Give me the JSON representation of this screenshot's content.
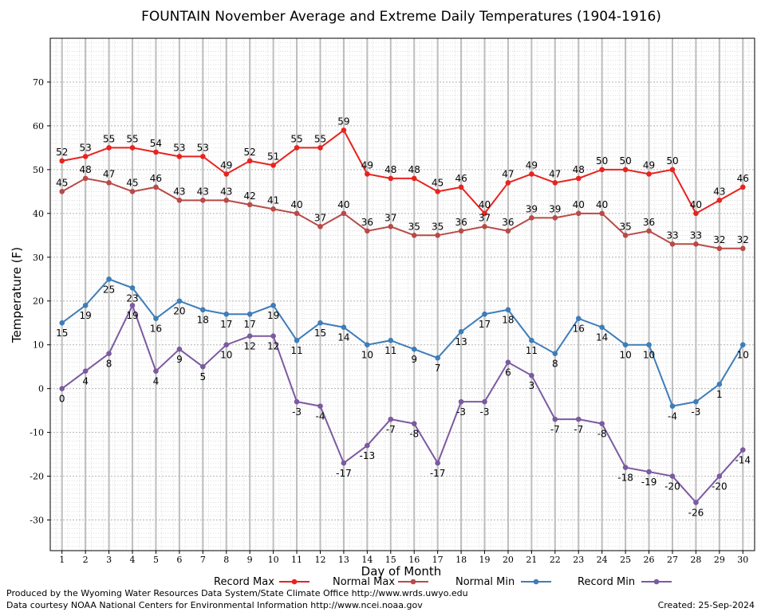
{
  "chart_data": {
    "type": "line",
    "title": "FOUNTAIN November Average and Extreme Daily Temperatures (1904-1916)",
    "xlabel": "Day of Month",
    "ylabel": "Temperature (F)",
    "ylim": [
      -37,
      80
    ],
    "xlim": [
      0.5,
      30.5
    ],
    "yticks": [
      -30,
      -20,
      -10,
      0,
      10,
      20,
      30,
      40,
      50,
      60,
      70
    ],
    "x": [
      1,
      2,
      3,
      4,
      5,
      6,
      7,
      8,
      9,
      10,
      11,
      12,
      13,
      14,
      15,
      16,
      17,
      18,
      19,
      20,
      21,
      22,
      23,
      24,
      25,
      26,
      27,
      28,
      29,
      30
    ],
    "grid": true,
    "legend_position": "bottom",
    "series": [
      {
        "name": "Record Max",
        "color": "#e8231f",
        "labelPos": "above",
        "values": [
          52,
          53,
          55,
          55,
          54,
          53,
          53,
          49,
          52,
          51,
          55,
          55,
          59,
          49,
          48,
          48,
          45,
          46,
          40,
          47,
          49,
          47,
          48,
          50,
          50,
          49,
          50,
          40,
          43,
          46
        ]
      },
      {
        "name": "Normal Max",
        "color": "#b84a47",
        "labelPos": "above",
        "values": [
          45,
          48,
          47,
          45,
          46,
          43,
          43,
          43,
          42,
          41,
          40,
          37,
          40,
          36,
          37,
          35,
          35,
          36,
          37,
          36,
          39,
          39,
          40,
          40,
          35,
          36,
          33,
          33,
          32,
          32
        ]
      },
      {
        "name": "Normal Min",
        "color": "#3e7db8",
        "labelPos": "below",
        "values": [
          15,
          19,
          25,
          23,
          16,
          20,
          18,
          17,
          17,
          19,
          11,
          15,
          14,
          10,
          11,
          9,
          7,
          13,
          17,
          18,
          11,
          8,
          16,
          14,
          10,
          10,
          -4,
          -3,
          1,
          10
        ]
      },
      {
        "name": "Record Min",
        "color": "#7b5aa0",
        "labelPos": "below",
        "values": [
          0,
          4,
          8,
          19,
          4,
          9,
          5,
          10,
          12,
          12,
          -3,
          -4,
          -17,
          -13,
          -7,
          -8,
          -17,
          -3,
          -3,
          6,
          3,
          -7,
          -7,
          -8,
          -18,
          -19,
          -20,
          -26,
          -20,
          -14
        ]
      }
    ]
  },
  "credits": {
    "produced": "Produced by the Wyoming Water Resources Data System/State Climate Office http://www.wrds.uwyo.edu",
    "courtesy": "Data courtesy NOAA National Centers for Environmental Information http://www.ncei.noaa.gov",
    "created": "Created:  25-Sep-2024"
  }
}
